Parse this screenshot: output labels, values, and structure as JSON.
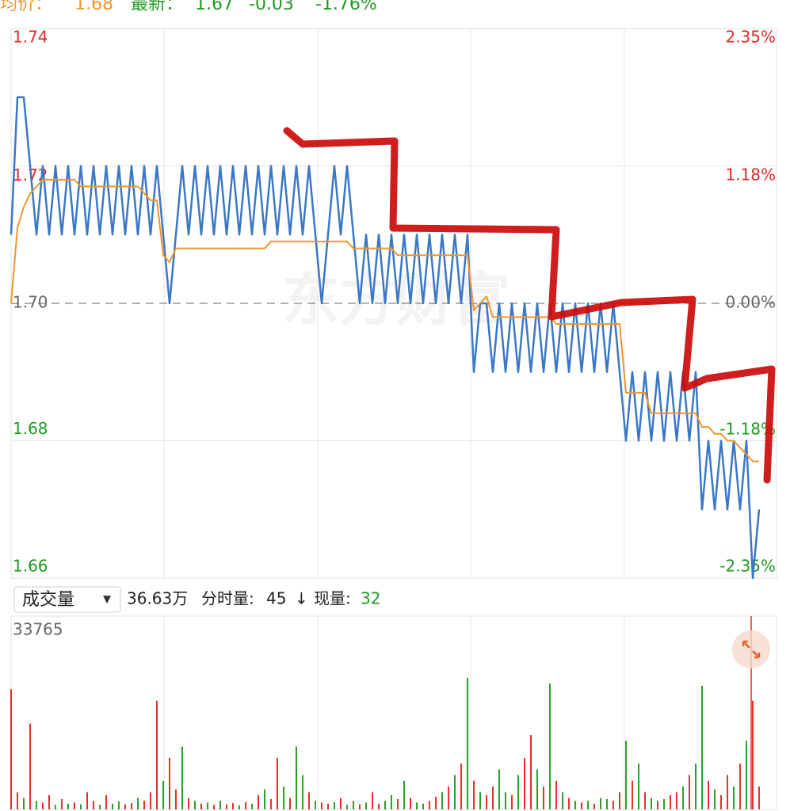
{
  "header": {
    "avg_label": "均价：",
    "avg": "1.68",
    "latest_label": "最新：",
    "latest": "1.67",
    "change": "-0.03",
    "change_pct": "-1.76%"
  },
  "chart_data": [
    {
      "type": "line",
      "watermark": "东方财富",
      "ylim": [
        1.66,
        1.74
      ],
      "yticks": [
        1.74,
        1.72,
        {
          "value": 1.7,
          "label": "1.70"
        },
        1.68,
        1.66
      ],
      "y2lim": [
        -2.35,
        2.35
      ],
      "y2ticks": [
        {
          "value": 2.35,
          "label": "2.35%"
        },
        {
          "value": 1.18,
          "label": "1.18%"
        },
        {
          "value": 0,
          "label": "0.00%"
        },
        {
          "value": -1.18,
          "label": "-1.18%"
        },
        {
          "value": -2.35,
          "label": "-2.35%"
        }
      ],
      "ref_value": 1.7,
      "up_color": "#e02a2a",
      "down_color": "#1f9a1f",
      "flat_color": "#666666",
      "grid": true,
      "series": [
        {
          "color": "#3a78c6",
          "values": [
            1.71,
            1.73,
            1.73,
            1.72,
            1.71,
            1.72,
            1.71,
            1.72,
            1.71,
            1.72,
            1.71,
            1.72,
            1.71,
            1.72,
            1.71,
            1.72,
            1.71,
            1.72,
            1.71,
            1.72,
            1.71,
            1.72,
            1.71,
            1.72,
            1.71,
            1.7,
            1.71,
            1.72,
            1.71,
            1.72,
            1.71,
            1.72,
            1.71,
            1.72,
            1.71,
            1.72,
            1.71,
            1.72,
            1.71,
            1.72,
            1.71,
            1.72,
            1.71,
            1.72,
            1.71,
            1.72,
            1.71,
            1.72,
            1.71,
            1.7,
            1.71,
            1.72,
            1.71,
            1.72,
            1.71,
            1.7,
            1.71,
            1.7,
            1.71,
            1.7,
            1.71,
            1.7,
            1.71,
            1.7,
            1.71,
            1.7,
            1.71,
            1.7,
            1.71,
            1.7,
            1.71,
            1.7,
            1.71,
            1.69,
            1.7,
            1.7,
            1.69,
            1.7,
            1.69,
            1.7,
            1.69,
            1.7,
            1.69,
            1.7,
            1.69,
            1.7,
            1.69,
            1.7,
            1.69,
            1.7,
            1.69,
            1.7,
            1.69,
            1.7,
            1.69,
            1.7,
            1.69,
            1.68,
            1.69,
            1.68,
            1.69,
            1.68,
            1.69,
            1.68,
            1.69,
            1.68,
            1.69,
            1.68,
            1.69,
            1.67,
            1.68,
            1.67,
            1.68,
            1.67,
            1.68,
            1.67,
            1.68,
            1.66,
            1.67
          ]
        },
        {
          "color": "#f0962a",
          "values": [
            1.7,
            1.711,
            1.714,
            1.716,
            1.717,
            1.718,
            1.718,
            1.718,
            1.718,
            1.718,
            1.718,
            1.717,
            1.717,
            1.717,
            1.717,
            1.717,
            1.717,
            1.717,
            1.717,
            1.717,
            1.717,
            1.716,
            1.715,
            1.715,
            1.707,
            1.706,
            1.708,
            1.708,
            1.708,
            1.708,
            1.708,
            1.708,
            1.708,
            1.708,
            1.708,
            1.708,
            1.708,
            1.708,
            1.708,
            1.708,
            1.708,
            1.709,
            1.709,
            1.709,
            1.709,
            1.709,
            1.709,
            1.709,
            1.709,
            1.709,
            1.709,
            1.709,
            1.709,
            1.709,
            1.708,
            1.708,
            1.708,
            1.708,
            1.708,
            1.708,
            1.708,
            1.707,
            1.707,
            1.707,
            1.707,
            1.707,
            1.707,
            1.707,
            1.707,
            1.707,
            1.707,
            1.707,
            1.707,
            1.699,
            1.7,
            1.701,
            1.698,
            1.698,
            1.698,
            1.698,
            1.698,
            1.698,
            1.698,
            1.698,
            1.698,
            1.698,
            1.697,
            1.697,
            1.697,
            1.697,
            1.697,
            1.697,
            1.697,
            1.697,
            1.697,
            1.697,
            1.697,
            1.687,
            1.687,
            1.687,
            1.687,
            1.684,
            1.684,
            1.684,
            1.684,
            1.684,
            1.684,
            1.684,
            1.684,
            1.682,
            1.682,
            1.681,
            1.681,
            1.68,
            1.68,
            1.679,
            1.678,
            1.677,
            1.677
          ]
        }
      ]
    },
    {
      "type": "bar",
      "selector": "成交量",
      "selector_arrow": "▼",
      "total": "36.63万",
      "minute_label": "分时量:",
      "minute": "45",
      "arrow": "↓",
      "current_label": "现量:",
      "current": "32",
      "ylim": [
        0,
        33765
      ],
      "yticks": [
        33765
      ],
      "values": [
        21000,
        3000,
        2000,
        15000,
        1500,
        1200,
        2500,
        800,
        1800,
        1000,
        1200,
        900,
        3000,
        1500,
        800,
        2500,
        1000,
        1400,
        900,
        1100,
        2000,
        1500,
        3000,
        19000,
        5000,
        9000,
        3500,
        11000,
        2000,
        1500,
        1000,
        1200,
        800,
        1500,
        900,
        1100,
        700,
        1300,
        1000,
        2500,
        3500,
        1800,
        9000,
        4000,
        2000,
        11000,
        6000,
        3000,
        1500,
        1200,
        1000,
        1300,
        2000,
        800,
        1500,
        900,
        1200,
        3000,
        1000,
        1500,
        2500,
        1800,
        5000,
        2000,
        1200,
        1000,
        1500,
        2200,
        3000,
        4000,
        6000,
        8000,
        23000,
        5000,
        3000,
        2500,
        4000,
        7000,
        3000,
        2500,
        6000,
        9000,
        13000,
        7000,
        4000,
        22000,
        5000,
        3000,
        2000,
        1500,
        1200,
        1500,
        1000,
        2000,
        1800,
        1500,
        3000,
        12000,
        5000,
        8000,
        3000,
        2000,
        1500,
        1800,
        2500,
        3000,
        4000,
        6000,
        8000,
        21600,
        5000,
        3500,
        2500,
        6000,
        4000,
        8000,
        12000,
        19000,
        4000
      ],
      "colors": [
        "#e8302a",
        "#e8302a",
        "#2ca02c",
        "#e8302a",
        "#2ca02c",
        "#e8302a",
        "#e8302a",
        "#2ca02c",
        "#e8302a",
        "#2ca02c",
        "#e8302a",
        "#2ca02c",
        "#e8302a",
        "#e8302a",
        "#2ca02c",
        "#e8302a",
        "#2ca02c",
        "#2ca02c",
        "#e8302a",
        "#e8302a",
        "#2ca02c",
        "#e8302a",
        "#e8302a",
        "#e8302a",
        "#2ca02c",
        "#e8302a",
        "#e8302a",
        "#2ca02c",
        "#e8302a",
        "#2ca02c",
        "#e8302a",
        "#2ca02c",
        "#e8302a",
        "#2ca02c",
        "#e8302a",
        "#e8302a",
        "#2ca02c",
        "#e8302a",
        "#2ca02c",
        "#e8302a",
        "#2ca02c",
        "#e8302a",
        "#e8302a",
        "#2ca02c",
        "#e8302a",
        "#2ca02c",
        "#2ca02c",
        "#e8302a",
        "#2ca02c",
        "#e8302a",
        "#e8302a",
        "#2ca02c",
        "#e8302a",
        "#2ca02c",
        "#2ca02c",
        "#e8302a",
        "#2ca02c",
        "#e8302a",
        "#e8302a",
        "#2ca02c",
        "#2ca02c",
        "#e8302a",
        "#2ca02c",
        "#e8302a",
        "#2ca02c",
        "#2ca02c",
        "#e8302a",
        "#e8302a",
        "#2ca02c",
        "#e8302a",
        "#2ca02c",
        "#e8302a",
        "#2ca02c",
        "#e8302a",
        "#2ca02c",
        "#e8302a",
        "#e8302a",
        "#2ca02c",
        "#2ca02c",
        "#e8302a",
        "#2ca02c",
        "#e8302a",
        "#e8302a",
        "#2ca02c",
        "#e8302a",
        "#2ca02c",
        "#e8302a",
        "#2ca02c",
        "#e8302a",
        "#2ca02c",
        "#e8302a",
        "#2ca02c",
        "#e8302a",
        "#2ca02c",
        "#2ca02c",
        "#e8302a",
        "#e8302a",
        "#2ca02c",
        "#e8302a",
        "#2ca02c",
        "#e8302a",
        "#2ca02c",
        "#e8302a",
        "#2ca02c",
        "#e8302a",
        "#e8302a",
        "#2ca02c",
        "#e8302a",
        "#2ca02c",
        "#2ca02c",
        "#e8302a",
        "#2ca02c",
        "#e8302a",
        "#e8302a",
        "#2ca02c",
        "#e8302a",
        "#2ca02c",
        "#e8302a",
        "#e8302a"
      ]
    }
  ]
}
